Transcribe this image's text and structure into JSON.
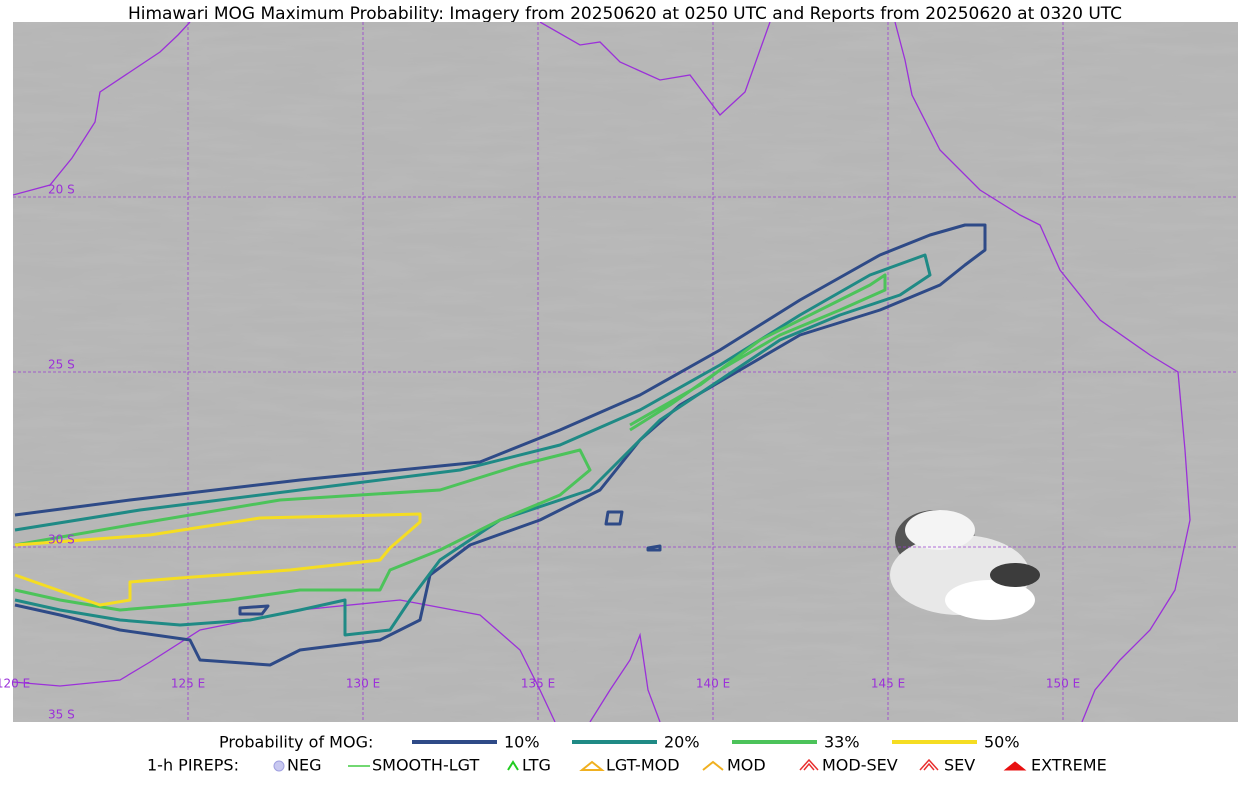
{
  "title": "Himawari MOG Maximum Probability: Imagery from 20250620 at 0250 UTC and Reports from 20250620 at 0320 UTC",
  "map": {
    "lat_labels": [
      "20 S",
      "25 S",
      "30 S",
      "35 S"
    ],
    "lon_labels": [
      "120 E",
      "125 E",
      "130 E",
      "135 E",
      "140 E",
      "145 E",
      "150 E"
    ]
  },
  "legend": {
    "mog_title": "Probability of MOG:",
    "mog_items": [
      {
        "label": "10%",
        "color": "#2e4a87"
      },
      {
        "label": "20%",
        "color": "#1f8a85"
      },
      {
        "label": "33%",
        "color": "#4cc35a"
      },
      {
        "label": "50%",
        "color": "#f5dd22"
      }
    ],
    "pireps_title": "1-h PIREPS:",
    "pireps_items": [
      "NEG",
      "SMOOTH-LGT",
      "LTG",
      "LGT-MOD",
      "MOD",
      "MOD-SEV",
      "SEV",
      "EXTREME"
    ]
  }
}
